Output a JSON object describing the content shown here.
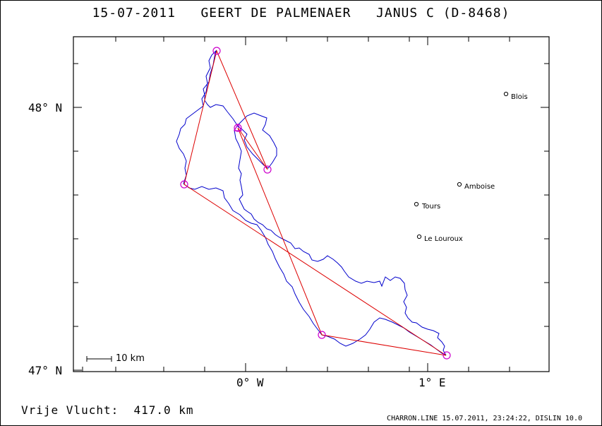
{
  "title": "15-07-2011   GEERT DE PALMENAER   JANUS C (D-8468)",
  "axes": {
    "y_labels": [
      "48° N",
      "47° N"
    ],
    "x_labels": [
      "0° W",
      "1° E"
    ]
  },
  "places": [
    {
      "name": "Blois"
    },
    {
      "name": "Amboise"
    },
    {
      "name": "Tours"
    },
    {
      "name": "Le Louroux"
    }
  ],
  "scale": {
    "label": "10 km"
  },
  "footer": {
    "distance": "Vrije Vlucht:  417.0 km",
    "software": "CHARRON.LINE 15.07.2011, 23:24:22, DISLIN 10.0"
  },
  "colors": {
    "track": "#0000cc",
    "task": "#dd0000",
    "turnpoint": "#cc00cc",
    "frame": "#000000"
  }
}
